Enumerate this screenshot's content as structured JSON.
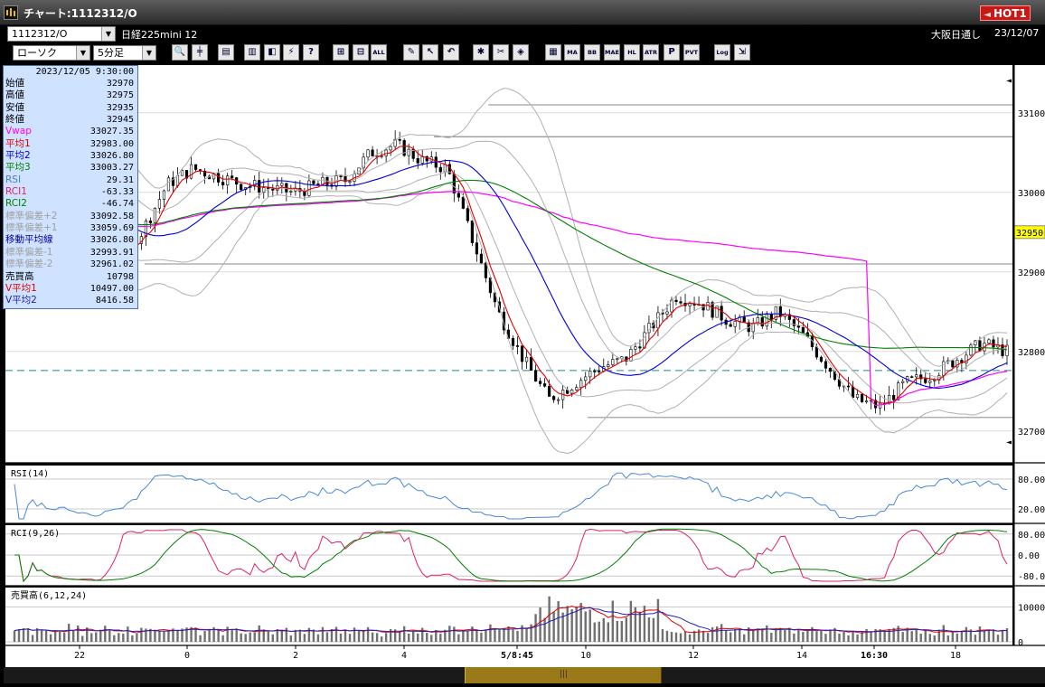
{
  "window": {
    "title": "チャート:1112312/O",
    "hot_label": "HOT1",
    "hot_arrow": "◄"
  },
  "info": {
    "symbol_code": "1112312/O",
    "symbol_name": "日経225mini 12",
    "chart_type": "ローソク",
    "interval": "5分足",
    "exchange": "大阪日通し",
    "date": "23/12/07"
  },
  "toolbar": {
    "buttons": [
      "zoom",
      "cursor",
      "print",
      "bar",
      "chart",
      "alert",
      "help",
      "candle",
      "candle2",
      "all",
      "draw",
      "select",
      "undo",
      "settings",
      "tools",
      "color",
      "mmm",
      "ma",
      "bb",
      "mae",
      "hl",
      "atr",
      "pa",
      "pvt",
      "log",
      "export"
    ],
    "labels": {
      "ma": "MA",
      "bb": "BB",
      "mae": "MAE",
      "hl": "HL",
      "atr": "ATR",
      "pvt": "PVT",
      "log": "Log",
      "all": "ALL"
    }
  },
  "panel": {
    "datetime": "2023/12/05 9:30:00",
    "rows": [
      {
        "k": "始値",
        "v": "32970",
        "color": "#000000"
      },
      {
        "k": "高値",
        "v": "32975",
        "color": "#000000"
      },
      {
        "k": "安値",
        "v": "32935",
        "color": "#000000"
      },
      {
        "k": "終値",
        "v": "32945",
        "color": "#000000"
      },
      {
        "k": "Vwap",
        "v": "33027.35",
        "color": "#ff00ff"
      },
      {
        "k": "平均1",
        "v": "32983.00",
        "color": "#e00000"
      },
      {
        "k": "平均2",
        "v": "33026.80",
        "color": "#0000e0"
      },
      {
        "k": "平均3",
        "v": "33003.27",
        "color": "#008000"
      },
      {
        "k": "RSI",
        "v": "29.31",
        "color": "#5080c0"
      },
      {
        "k": "RCI1",
        "v": "-63.33",
        "color": "#e0206b"
      },
      {
        "k": "RCI2",
        "v": "-46.74",
        "color": "#008000"
      },
      {
        "k": "標準偏差+2",
        "v": "33092.58",
        "color": "#a0a0a0"
      },
      {
        "k": "標準偏差+1",
        "v": "33059.69",
        "color": "#a0a0a0"
      },
      {
        "k": "移動平均線",
        "v": "33026.80",
        "color": "#0000a0"
      },
      {
        "k": "標準偏差-1",
        "v": "32993.91",
        "color": "#a0a0a0"
      },
      {
        "k": "標準偏差-2",
        "v": "32961.02",
        "color": "#a0a0a0"
      },
      {
        "k": "売買高",
        "v": "10798",
        "color": "#000000"
      },
      {
        "k": "V平均1",
        "v": "10497.00",
        "color": "#e00000"
      },
      {
        "k": "V平均2",
        "v": "8416.58",
        "color": "#2020c0"
      }
    ]
  },
  "price_axis": {
    "ticks": [
      "33100",
      "33000",
      "32900",
      "32800",
      "32700"
    ],
    "current_price": "32950"
  },
  "subpanels": {
    "rsi": {
      "title": "RSI(14)",
      "ticks": [
        "80.00",
        "20.00"
      ]
    },
    "rci": {
      "title": "RCI(9,26)",
      "ticks": [
        "80.00",
        "0.00",
        "-80.00"
      ]
    },
    "volume": {
      "title": "売買高(6,12,24)",
      "ticks": [
        "10000",
        "0"
      ]
    }
  },
  "time_axis": {
    "labels": [
      "22",
      "0",
      "2",
      "4",
      "5/8:45",
      "10",
      "12",
      "14",
      "16:30",
      "18"
    ],
    "bold": [
      "5/8:45",
      "16:30"
    ]
  },
  "colors": {
    "vwap": "#ff00ff",
    "ma1": "#e00000",
    "ma2": "#0000e0",
    "ma3": "#008000",
    "bands": "#b0b0b0",
    "rsi": "#4a88d8",
    "rci1": "#e0206b",
    "rci2": "#008000",
    "current": "#ffff00"
  },
  "chart_data": {
    "type": "candlestick",
    "ylim": [
      32660,
      33160
    ],
    "price_close_series": [
      33020,
      33010,
      32980,
      32900,
      32920,
      32950,
      33010,
      33030,
      33020,
      33010,
      33005,
      33000,
      33010,
      33015,
      33050,
      33060,
      33040,
      33030,
      32940,
      32850,
      32790,
      32740,
      32760,
      32780,
      32790,
      32830,
      32870,
      32860,
      32840,
      32830,
      32850,
      32820,
      32780,
      32740,
      32730,
      32760,
      32770,
      32790,
      32810,
      32800
    ]
  }
}
